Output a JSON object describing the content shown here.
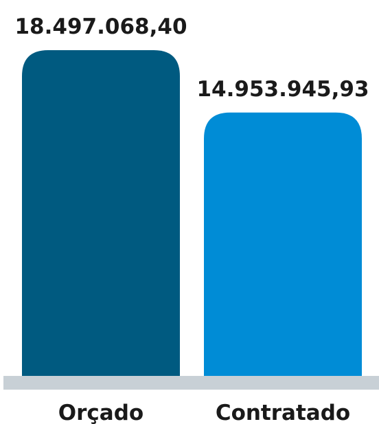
{
  "chart_data": {
    "type": "bar",
    "categories": [
      "Orçado",
      "Contratado"
    ],
    "values": [
      18497068.4,
      14953945.93
    ],
    "value_labels": [
      "18.497.068,40",
      "14.953.945,93"
    ],
    "title": "",
    "xlabel": "",
    "ylabel": "",
    "ylim": [
      0,
      20000000
    ],
    "grid": false,
    "legend": "none",
    "colors": [
      "#005a80",
      "#008cd6"
    ],
    "baseline_color": "#c8d0d6"
  }
}
